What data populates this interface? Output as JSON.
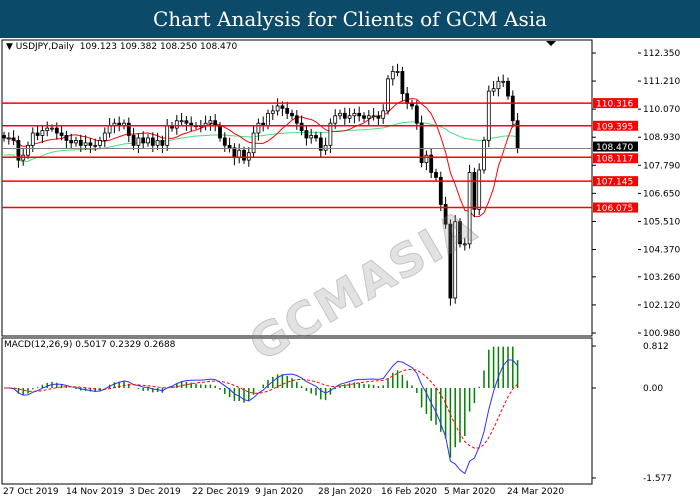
{
  "title": "Chart Analysis for Clients of GCM Asia",
  "watermark": "GCMASIA",
  "chart_data": [
    {
      "type": "candlestick",
      "symbol_label": "USDJPY,Daily",
      "ohlc_label": "109.123 109.382 108.250 108.470",
      "ylim": [
        100.98,
        112.35
      ],
      "y_ticks": [
        "112.350",
        "111.210",
        "110.070",
        "108.930",
        "107.790",
        "106.650",
        "105.510",
        "104.370",
        "103.260",
        "102.120",
        "100.980"
      ],
      "x_ticks": [
        "27 Oct 2019",
        "14 Nov 2019",
        "3 Dec 2019",
        "22 Dec 2019",
        "9 Jan 2020",
        "28 Jan 2020",
        "16 Feb 2020",
        "5 Mar 2020",
        "24 Mar 2020"
      ],
      "closes": [
        108.9,
        108.9,
        108.8,
        108.0,
        108.2,
        108.6,
        109.1,
        109.0,
        109.2,
        109.3,
        109.3,
        109.1,
        109.0,
        108.8,
        108.7,
        108.8,
        108.6,
        108.7,
        108.6,
        108.6,
        108.8,
        109.1,
        109.4,
        109.5,
        109.4,
        109.5,
        109.0,
        108.6,
        108.9,
        108.7,
        108.9,
        108.6,
        108.8,
        108.6,
        109.4,
        109.3,
        109.6,
        109.6,
        109.5,
        109.4,
        109.4,
        109.4,
        109.5,
        109.6,
        109.4,
        108.9,
        108.6,
        108.5,
        108.1,
        108.4,
        108.0,
        108.3,
        109.1,
        109.5,
        109.4,
        109.9,
        110.0,
        110.2,
        110.1,
        109.9,
        109.8,
        109.5,
        109.2,
        108.9,
        109.0,
        108.9,
        108.4,
        108.6,
        109.5,
        109.8,
        109.9,
        109.7,
        109.8,
        109.9,
        109.8,
        109.7,
        109.8,
        109.8,
        109.7,
        110.0,
        111.3,
        111.6,
        111.6,
        110.7,
        110.3,
        110.2,
        109.5,
        107.9,
        108.2,
        107.5,
        107.3,
        106.2,
        105.4,
        102.4,
        105.5,
        104.6,
        104.6,
        107.5,
        106.0,
        107.6,
        108.8,
        110.8,
        110.9,
        111.2,
        111.2,
        110.6,
        109.6,
        108.47
      ],
      "current_price": "108.470",
      "levels": [
        "110.316",
        "109.395",
        "108.117",
        "107.145",
        "106.075"
      ],
      "colors": {
        "up": "#000000",
        "down": "#000000",
        "level": "#ff0000",
        "ma_fast": "#ff0000",
        "ma_slow": "#40e080",
        "current": "#000000"
      }
    },
    {
      "type": "macd",
      "label": "MACD(12,26,9) 0.5017 0.2329 0.2688",
      "ylim": [
        -1.577,
        0.812
      ],
      "y_ticks": [
        "0.812",
        "0.00",
        "-1.577"
      ],
      "colors": {
        "histogram": "#008000",
        "macd": "#3030ff",
        "signal": "#ff0000"
      }
    }
  ]
}
